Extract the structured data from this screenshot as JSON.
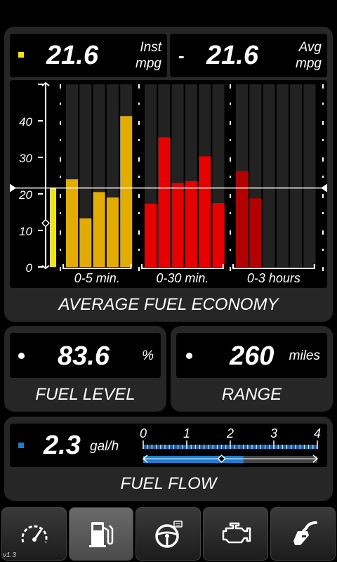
{
  "inst": {
    "value": "21.6",
    "unit_line1": "Inst",
    "unit_line2": "mpg",
    "color": "#f2e600"
  },
  "avg": {
    "value": "21.6",
    "unit_line1": "Avg",
    "unit_line2": "mpg",
    "separator": "-"
  },
  "economy": {
    "caption": "AVERAGE FUEL ECONOMY"
  },
  "fuel_level": {
    "value": "83.6",
    "unit": "%",
    "caption": "FUEL LEVEL"
  },
  "range": {
    "value": "260",
    "unit": "miles",
    "caption": "RANGE"
  },
  "fuel_flow": {
    "value": "2.3",
    "unit": "gal/h",
    "caption": "FUEL FLOW",
    "color": "#1a7fd0",
    "scale_labels": [
      "0",
      "1",
      "2",
      "3",
      "4"
    ],
    "scale_max": 4,
    "current": 2.3,
    "average": 1.8
  },
  "chart_data": {
    "type": "bar",
    "y_ticks": [
      "0",
      "10",
      "20",
      "30",
      "40"
    ],
    "ylim": [
      0,
      50
    ],
    "reference_line": 21.6,
    "gauge_marker": 12,
    "current_value": 21.6,
    "groups": [
      {
        "label": "0-5 min.",
        "color": "#e2ad00",
        "slots": 5,
        "values": [
          24,
          13.3,
          20.5,
          19,
          41.3
        ]
      },
      {
        "label": "0-30 min.",
        "color": "#e60000",
        "slots": 6,
        "values": [
          17.3,
          35.5,
          23,
          23.5,
          30.3,
          17.5
        ]
      },
      {
        "label": "0-3 hours",
        "color": "#b30000",
        "slots": 6,
        "values": [
          26.3,
          18.8
        ]
      }
    ]
  },
  "nav": {
    "version": "v1.3",
    "tabs": [
      {
        "name": "gauge",
        "active": false
      },
      {
        "name": "fuel",
        "active": true
      },
      {
        "name": "trip",
        "active": false
      },
      {
        "name": "engine",
        "active": false
      },
      {
        "name": "fill-up",
        "active": false
      }
    ]
  }
}
